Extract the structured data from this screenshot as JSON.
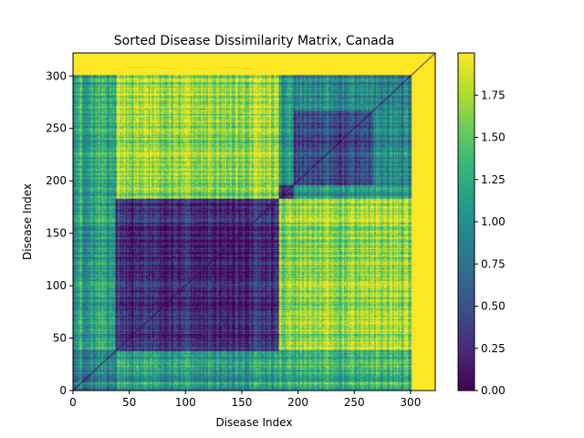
{
  "chart_data": {
    "type": "heatmap",
    "title": "Sorted Disease Dissimilarity Matrix, Canada",
    "xlabel": "Disease Index",
    "ylabel": "Disease Index",
    "xlim": [
      0,
      322
    ],
    "ylim": [
      0,
      322
    ],
    "x_ticks": [
      0,
      50,
      100,
      150,
      200,
      250,
      300
    ],
    "y_ticks": [
      0,
      50,
      100,
      150,
      200,
      250,
      300
    ],
    "colormap": "viridis",
    "colorbar": {
      "vmin": 0.0,
      "vmax": 2.0,
      "ticks": [
        "0.00",
        "0.25",
        "0.50",
        "0.75",
        "1.00",
        "1.25",
        "1.50",
        "1.75"
      ]
    },
    "n_diseases": 322,
    "diagonal_value": 0.0,
    "padding_value": 2.0,
    "padding_start_index": 301,
    "clusters": [
      {
        "range": [
          0,
          38
        ],
        "within_value": 0.9
      },
      {
        "range": [
          38,
          183
        ],
        "within_value": 0.2
      },
      {
        "range": [
          183,
          196
        ],
        "within_value": 0.35
      },
      {
        "range": [
          196,
          267
        ],
        "within_value": 0.45
      },
      {
        "range": [
          267,
          301
        ],
        "within_value": 0.8
      }
    ],
    "block_values": [
      {
        "rows": [
          38,
          183
        ],
        "cols": [
          183,
          301
        ],
        "value": 1.65
      },
      {
        "rows": [
          183,
          301
        ],
        "cols": [
          38,
          183
        ],
        "value": 1.65
      },
      {
        "rows": [
          0,
          38
        ],
        "cols": [
          183,
          301
        ],
        "value": 1.3
      },
      {
        "rows": [
          183,
          301
        ],
        "cols": [
          0,
          38
        ],
        "value": 1.2
      },
      {
        "rows": [
          196,
          267
        ],
        "cols": [
          267,
          301
        ],
        "value": 0.9
      },
      {
        "rows": [
          267,
          301
        ],
        "cols": [
          196,
          267
        ],
        "value": 0.9
      }
    ]
  }
}
